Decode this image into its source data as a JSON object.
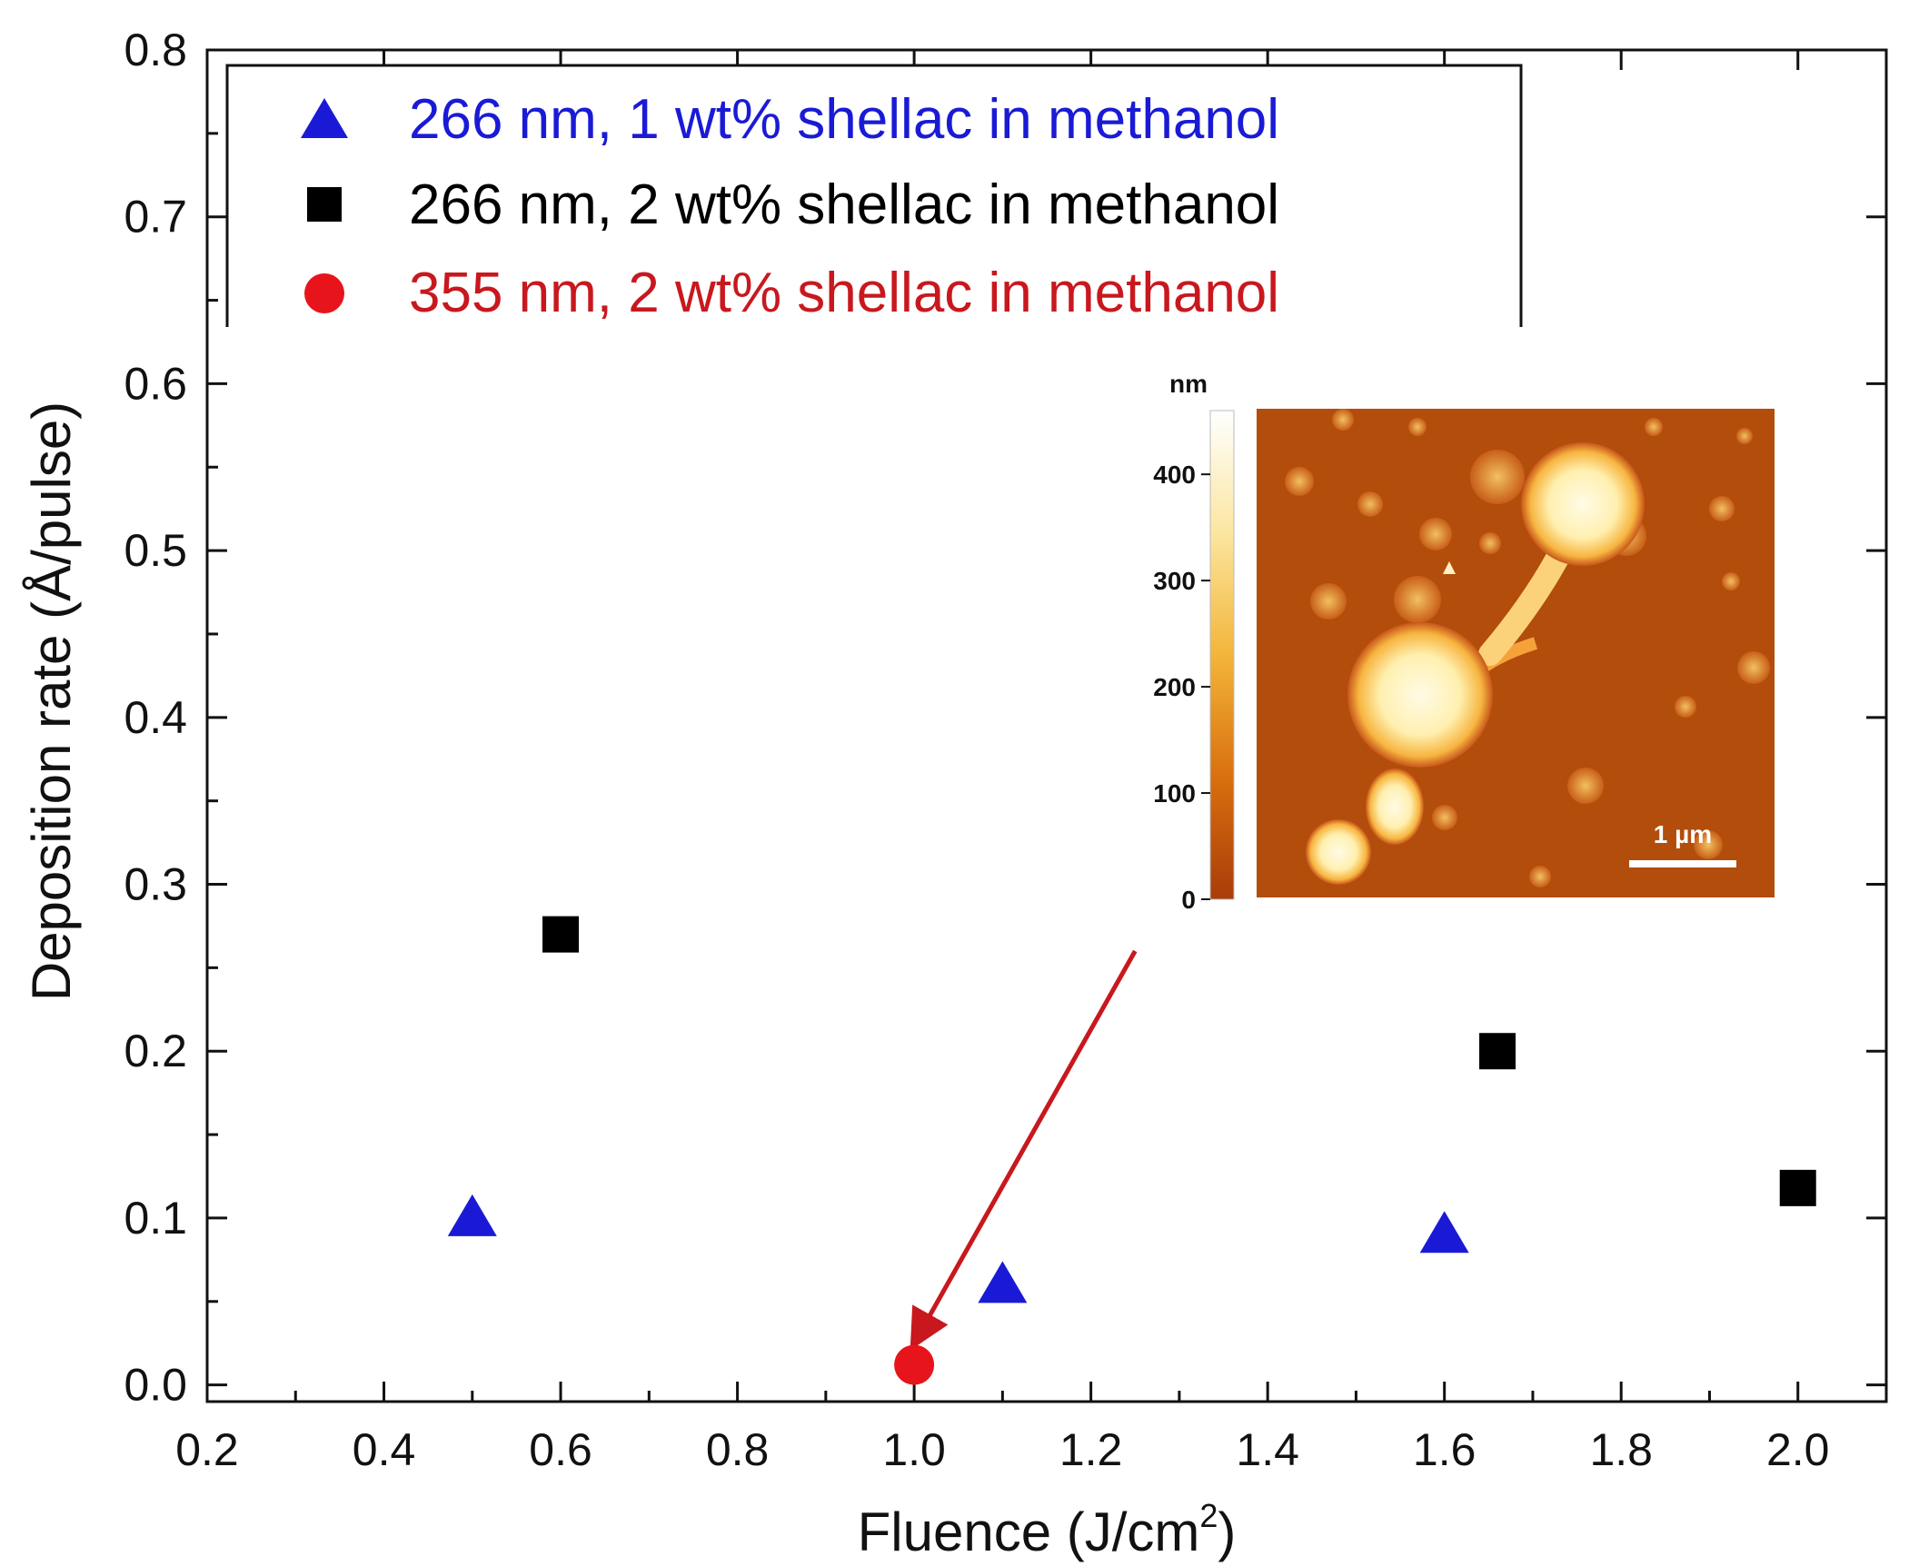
{
  "chart_data": {
    "type": "scatter",
    "xlabel": "Fluence (J/cm",
    "xlabel_sup": "2",
    "xlabel_close": ")",
    "ylabel": "Deposition rate (Å/pulse)",
    "xlim": [
      0.2,
      2.1
    ],
    "ylim": [
      -0.01,
      0.8
    ],
    "xticks": [
      0.2,
      0.4,
      0.6,
      0.8,
      1.0,
      1.2,
      1.4,
      1.6,
      1.8,
      2.0
    ],
    "xtick_labels": [
      "0.2",
      "0.4",
      "0.6",
      "0.8",
      "1.0",
      "1.2",
      "1.4",
      "1.6",
      "1.8",
      "2.0"
    ],
    "yticks": [
      0.0,
      0.1,
      0.2,
      0.3,
      0.4,
      0.5,
      0.6,
      0.7,
      0.8
    ],
    "ytick_labels": [
      "0.0",
      "0.1",
      "0.2",
      "0.3",
      "0.4",
      "0.5",
      "0.6",
      "0.7",
      "0.8"
    ],
    "series": [
      {
        "name": "266 nm, 1 wt% shellac in methanol",
        "marker": "triangle",
        "color": "#1a1ad6",
        "x": [
          0.5,
          1.1,
          1.6
        ],
        "y": [
          0.1,
          0.06,
          0.09
        ]
      },
      {
        "name": "266 nm, 2 wt% shellac in methanol",
        "marker": "square",
        "color": "#000000",
        "x": [
          0.6,
          1.66,
          2.0
        ],
        "y": [
          0.27,
          0.2,
          0.118
        ]
      },
      {
        "name": "355 nm, 2 wt% shellac in methanol",
        "marker": "circle",
        "color": "#e8141b",
        "x": [
          1.0
        ],
        "y": [
          0.012
        ]
      }
    ],
    "legend_placement": "top-left",
    "annotation": {
      "type": "arrow",
      "color": "#c8181e",
      "from": [
        1.25,
        0.26
      ],
      "to": [
        1.0,
        0.025
      ]
    },
    "inset": {
      "type": "afm-image",
      "colorbar_unit": "nm",
      "colorbar_ticks": [
        0,
        100,
        200,
        300,
        400
      ],
      "colorbar_tick_labels": [
        "0",
        "100",
        "200",
        "300",
        "400"
      ],
      "colorbar_range": [
        0,
        460
      ],
      "scalebar_label": "1 µm"
    }
  }
}
